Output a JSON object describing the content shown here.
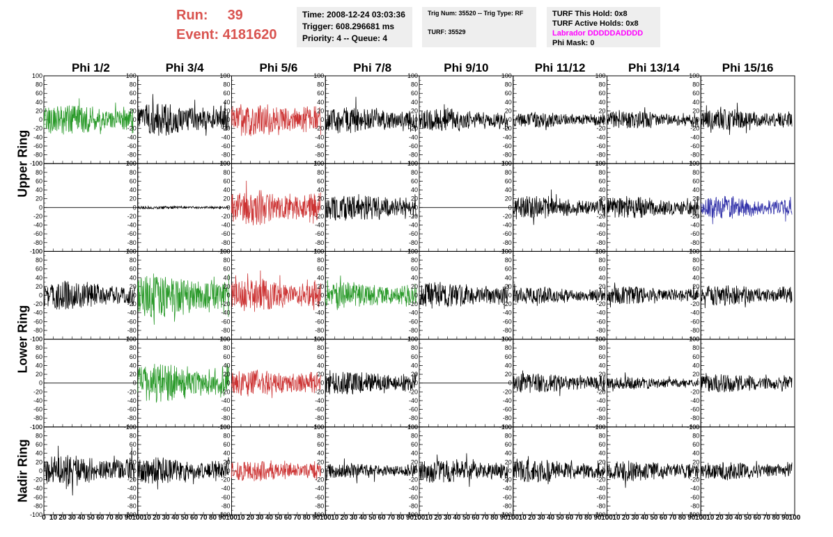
{
  "header": {
    "run_label": "Run:",
    "run_value": "39",
    "event_label": "Event:",
    "event_value": "4181620",
    "time": "Time: 2008-12-24 03:03:36",
    "trigger": "Trigger: 608.296681 ms",
    "priority": "Priority: 4 -- Queue: 4",
    "trig_num": "Trig Num: 35520 -- Trig Type: RF",
    "turf": "TURF: 35529",
    "turf_hold": "TURF This Hold: 0x8",
    "turf_active": "TURF Active Holds: 0x8",
    "labrador": "Labrador DDDDDADDDD",
    "phi_mask": "Phi Mask: 0"
  },
  "chart_data": {
    "type": "line",
    "title": "",
    "columns": [
      "Phi 1/2",
      "Phi 3/4",
      "Phi 5/6",
      "Phi 7/8",
      "Phi 9/10",
      "Phi 11/12",
      "Phi 13/14",
      "Phi 15/16"
    ],
    "rows": [
      "Upper Ring",
      "Upper Ring",
      "Lower Ring",
      "Lower Ring",
      "Nadir Ring"
    ],
    "row_labels": [
      {
        "text": "Upper Ring",
        "rows": [
          0,
          1
        ]
      },
      {
        "text": "Lower Ring",
        "rows": [
          2,
          3
        ]
      },
      {
        "text": "Nadir Ring",
        "rows": [
          4,
          4
        ]
      }
    ],
    "xlim": [
      0,
      100
    ],
    "ylim": [
      -100,
      100
    ],
    "x_ticks": [
      "0",
      "10",
      "20",
      "30",
      "40",
      "50",
      "60",
      "70",
      "80",
      "90",
      "100"
    ],
    "y_ticks": [
      "100",
      "80",
      "60",
      "40",
      "20",
      "0",
      "-20",
      "-40",
      "-60",
      "-80",
      "-100"
    ],
    "colors": {
      "black": "#000000",
      "green": "#2a9a2a",
      "red": "#cc3333",
      "blue": "#3333aa"
    },
    "traces": [
      [
        {
          "color": "green",
          "amp": 30,
          "x_end": 95
        },
        {
          "color": "black",
          "amp": 32,
          "x_end": 97
        },
        {
          "color": "red",
          "amp": 34,
          "x_end": 95
        },
        {
          "color": "black",
          "amp": 26,
          "x_end": 97
        },
        {
          "color": "black",
          "amp": 22,
          "x_end": 95
        },
        {
          "color": "black",
          "amp": 15,
          "x_end": 98
        },
        {
          "color": "black",
          "amp": 17,
          "x_end": 97
        },
        {
          "color": "black",
          "amp": 20,
          "x_end": 97
        }
      ],
      [
        {
          "color": "black",
          "amp": 0,
          "x_end": 100
        },
        {
          "color": "black",
          "amp": 3,
          "x_end": 97
        },
        {
          "color": "red",
          "amp": 34,
          "x_end": 95
        },
        {
          "color": "black",
          "amp": 26,
          "x_end": 97
        },
        {
          "color": "black",
          "amp": 0,
          "x_end": 100
        },
        {
          "color": "black",
          "amp": 22,
          "x_end": 98
        },
        {
          "color": "black",
          "amp": 22,
          "x_end": 97
        },
        {
          "color": "blue",
          "amp": 22,
          "x_end": 97
        }
      ],
      [
        {
          "color": "black",
          "amp": 28,
          "x_end": 97
        },
        {
          "color": "green",
          "amp": 44,
          "x_end": 97
        },
        {
          "color": "red",
          "amp": 32,
          "x_end": 95
        },
        {
          "color": "green",
          "amp": 26,
          "x_end": 97
        },
        {
          "color": "black",
          "amp": 26,
          "x_end": 95
        },
        {
          "color": "black",
          "amp": 17,
          "x_end": 98
        },
        {
          "color": "black",
          "amp": 17,
          "x_end": 97
        },
        {
          "color": "black",
          "amp": 20,
          "x_end": 97
        }
      ],
      [
        {
          "color": "black",
          "amp": 0,
          "x_end": 100
        },
        {
          "color": "green",
          "amp": 38,
          "x_end": 97
        },
        {
          "color": "red",
          "amp": 26,
          "x_end": 95
        },
        {
          "color": "black",
          "amp": 22,
          "x_end": 97
        },
        {
          "color": "black",
          "amp": 0,
          "x_end": 100
        },
        {
          "color": "black",
          "amp": 20,
          "x_end": 98
        },
        {
          "color": "black",
          "amp": 12,
          "x_end": 97
        },
        {
          "color": "black",
          "amp": 18,
          "x_end": 97
        }
      ],
      [
        {
          "color": "black",
          "amp": 30,
          "x_end": 97
        },
        {
          "color": "black",
          "amp": 26,
          "x_end": 97
        },
        {
          "color": "red",
          "amp": 20,
          "x_end": 95
        },
        {
          "color": "black",
          "amp": 15,
          "x_end": 97
        },
        {
          "color": "black",
          "amp": 24,
          "x_end": 95
        },
        {
          "color": "black",
          "amp": 22,
          "x_end": 98
        },
        {
          "color": "black",
          "amp": 20,
          "x_end": 97
        },
        {
          "color": "black",
          "amp": 18,
          "x_end": 97
        }
      ]
    ]
  }
}
